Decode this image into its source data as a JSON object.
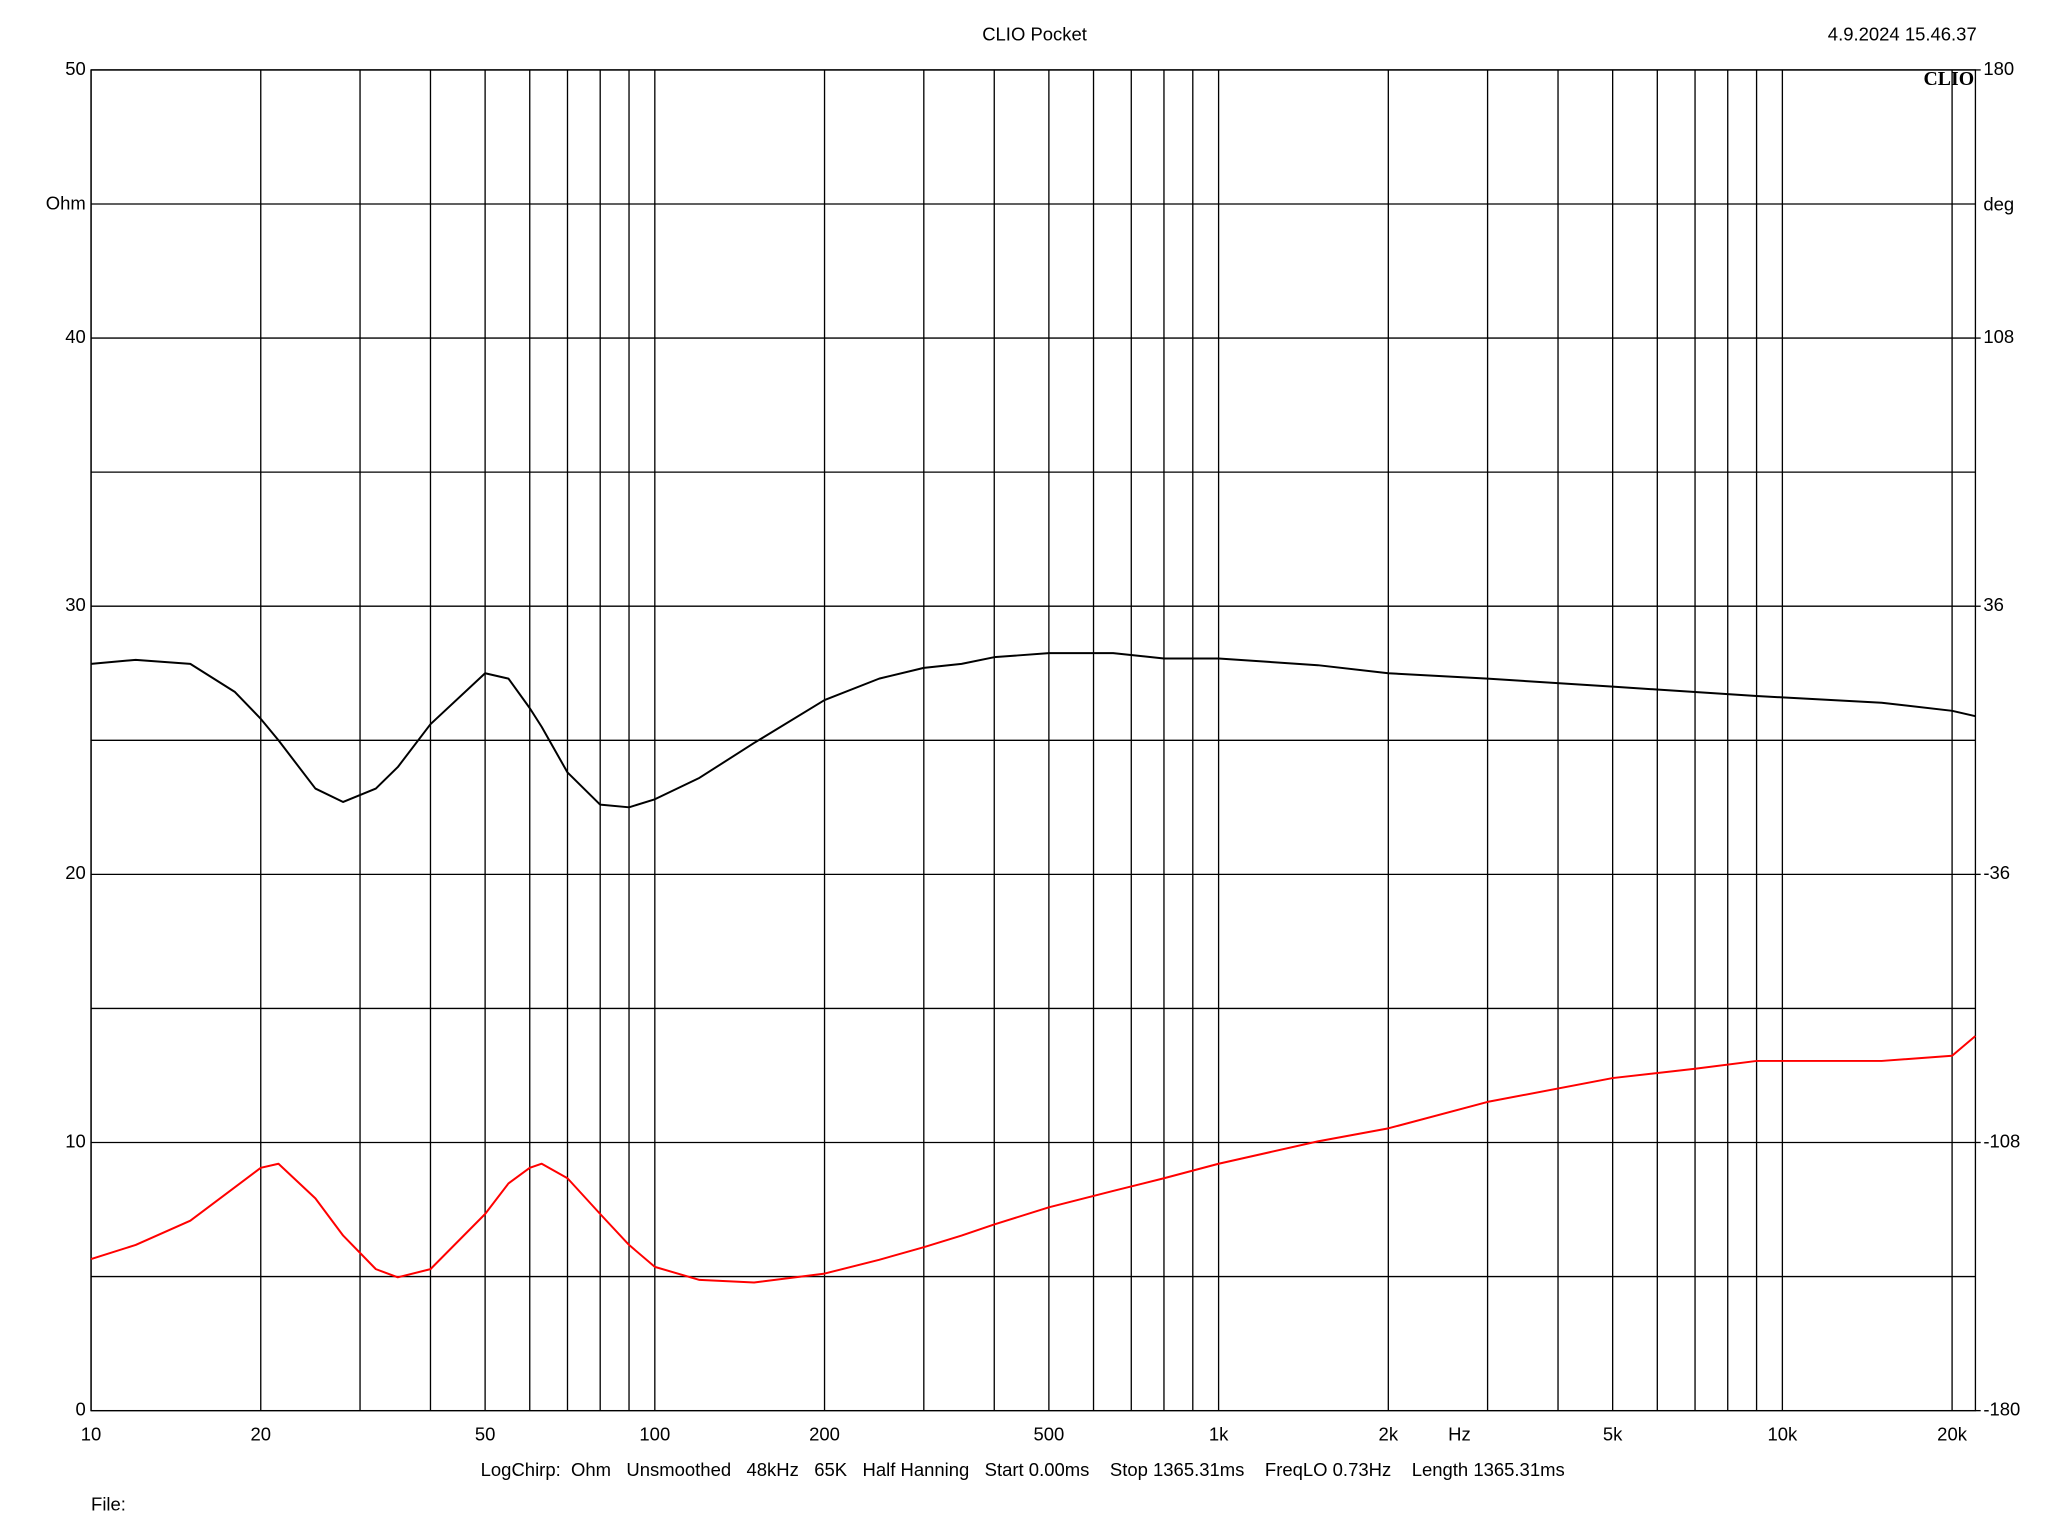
{
  "chart_data": {
    "type": "line",
    "title": "CLIO Pocket",
    "timestamp": "4.9.2024 15.46.37",
    "logo": "CLIO",
    "y_label": "Ohm",
    "y2_label": "deg",
    "x_unit": "Hz",
    "footer": "LogChirp:  Ohm   Unsmoothed   48kHz   65K   Half Hanning   Start 0.00ms    Stop 1365.31ms    FreqLO 0.73Hz    Length 1365.31ms",
    "file_label": "File:",
    "x_scale": "log",
    "grid": true,
    "xlim": [
      10,
      22000
    ],
    "xticks": [
      10,
      20,
      50,
      100,
      200,
      500,
      {
        "value": 1000,
        "label": "1k"
      },
      {
        "value": 2000,
        "label": "2k"
      },
      {
        "value": 5000,
        "label": "5k"
      },
      {
        "value": 10000,
        "label": "10k"
      },
      {
        "value": 20000,
        "label": "20k"
      }
    ],
    "xminor": [
      30,
      40,
      60,
      70,
      80,
      90,
      300,
      400,
      600,
      700,
      800,
      900,
      3000,
      4000,
      6000,
      7000,
      8000,
      9000
    ],
    "ylim": [
      0,
      50
    ],
    "yticks": [
      0,
      10,
      20,
      30,
      40,
      50
    ],
    "yminor": [
      5,
      15,
      25,
      35,
      45
    ],
    "y2lim": [
      -180,
      180
    ],
    "y2ticks": [
      -180,
      -108,
      -36,
      36,
      108,
      180
    ],
    "x": [
      10,
      12,
      15,
      18,
      20,
      21.5,
      25,
      28,
      32,
      35,
      40,
      50,
      55,
      60,
      63,
      70,
      80,
      90,
      100,
      120,
      150,
      200,
      250,
      300,
      350,
      400,
      500,
      650,
      800,
      1000,
      1500,
      2000,
      3000,
      5000,
      7000,
      9000,
      10000,
      15000,
      20000,
      22000
    ],
    "series": [
      {
        "name": "Ohm",
        "color": "#000000",
        "values": [
          27.85,
          28.0,
          27.85,
          26.8,
          25.8,
          25.0,
          23.2,
          22.7,
          23.2,
          24.0,
          25.6,
          27.5,
          27.3,
          26.2,
          25.5,
          23.8,
          22.6,
          22.5,
          22.8,
          23.6,
          24.9,
          26.5,
          27.3,
          27.7,
          27.85,
          28.1,
          28.25,
          28.25,
          28.05,
          28.05,
          27.8,
          27.5,
          27.3,
          27.0,
          26.8,
          26.65,
          26.6,
          26.4,
          26.1,
          25.9
        ]
      },
      {
        "name": "deg",
        "color": "#ff0000",
        "axis": "y2",
        "values": [
          -139.3,
          -135.5,
          -129,
          -120,
          -114.8,
          -113.7,
          -123,
          -133,
          -142,
          -144.2,
          -142,
          -127.2,
          -119,
          -114.8,
          -113.7,
          -117.6,
          -127.2,
          -135.5,
          -141.4,
          -144.9,
          -145.6,
          -143.2,
          -139.5,
          -136.1,
          -133,
          -130,
          -125.4,
          -121,
          -117.6,
          -113.7,
          -107.7,
          -104.2,
          -97.1,
          -90.7,
          -88.2,
          -86.1,
          -86.1,
          -86.1,
          -84.7,
          -79.4
        ]
      }
    ]
  }
}
